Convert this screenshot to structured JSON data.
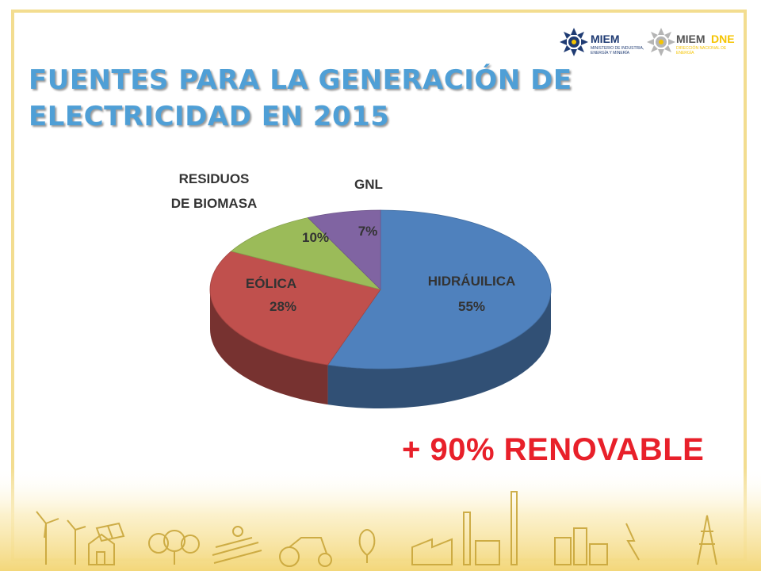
{
  "title": {
    "line1": "FUENTES PARA LA GENERACIÓN DE",
    "line2": "ELECTRICIDAD EN 2015"
  },
  "logos": [
    {
      "name": "MIEM",
      "text": "MIEM",
      "subtext": "MINISTERIO DE INDUSTRIA, ENERGÍA Y MINERÍA",
      "color": "#1f3b73"
    },
    {
      "name": "MIEM DNE",
      "text_a": "MIEM",
      "text_b": "DNE",
      "subtext": "DIRECCIÓN NACIONAL DE ENERGÍA",
      "color_a": "#555555",
      "color_b": "#f5c400"
    }
  ],
  "chart_data": {
    "type": "pie",
    "style": "3d",
    "slices": [
      {
        "label": "HIDRÁUILICA",
        "value": 55,
        "value_text": "55%",
        "color": "#4f81bd"
      },
      {
        "label": "EÓLICA",
        "value": 28,
        "value_text": "28%",
        "color": "#c0504d"
      },
      {
        "label_lines": [
          "RESIDUOS",
          "DE BIOMASA"
        ],
        "value": 10,
        "value_text": "10%",
        "color": "#9bbb59"
      },
      {
        "label": "GNL",
        "value": 7,
        "value_text": "7%",
        "color": "#8064a2"
      }
    ]
  },
  "callout": "+ 90% RENOVABLE",
  "colors": {
    "title": "#4f9fd6",
    "callout": "#e8202a",
    "frame": "#f3dd90",
    "label_text": "#333333"
  }
}
